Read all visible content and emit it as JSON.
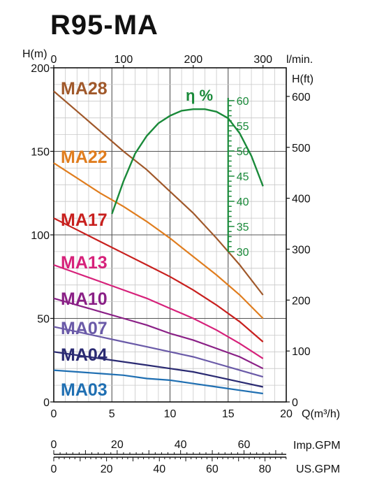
{
  "chart_data": {
    "type": "line",
    "title": "R95-MA",
    "x_axis": {
      "label": "Q(m³/h)",
      "lim": [
        0,
        20
      ],
      "ticks": [
        0,
        5,
        10,
        15,
        20
      ]
    },
    "x_top_axis": {
      "label": "l/min.",
      "ticks": [
        0,
        100,
        200,
        300
      ]
    },
    "y_axis": {
      "label": "H(m)",
      "lim": [
        0,
        200
      ],
      "ticks": [
        0,
        50,
        100,
        150,
        200
      ]
    },
    "y_right_axis": {
      "label": "H(ft)",
      "ticks": [
        0,
        100,
        200,
        300,
        400,
        500,
        600
      ]
    },
    "efficiency_axis": {
      "label": "η %",
      "ticks": [
        30,
        35,
        40,
        45,
        50,
        55,
        60
      ],
      "color": "#1a8a3a"
    },
    "imp_gpm_axis": {
      "label": "Imp.GPM",
      "ticks": [
        0,
        20,
        40,
        60
      ]
    },
    "us_gpm_axis": {
      "label": "US.GPM",
      "ticks": [
        0,
        20,
        40,
        60,
        80
      ]
    },
    "grid": true,
    "series": [
      {
        "name": "MA28",
        "color": "#a0582a",
        "x": [
          0,
          2,
          4,
          6,
          8,
          10,
          12,
          14,
          16,
          18
        ],
        "values": [
          186,
          174,
          162,
          150,
          139,
          126,
          113,
          98,
          82,
          64
        ]
      },
      {
        "name": "MA22",
        "color": "#e07d1e",
        "x": [
          0,
          2,
          4,
          6,
          8,
          10,
          12,
          14,
          16,
          18
        ],
        "values": [
          143,
          134,
          125,
          117,
          108,
          98,
          87,
          76,
          64,
          50
        ]
      },
      {
        "name": "MA17",
        "color": "#c8201e",
        "x": [
          0,
          2,
          4,
          6,
          8,
          10,
          12,
          14,
          16,
          18
        ],
        "values": [
          110,
          103,
          96,
          89,
          82,
          75,
          67,
          58,
          48,
          36
        ]
      },
      {
        "name": "MA13",
        "color": "#d6217a",
        "x": [
          0,
          2,
          4,
          6,
          8,
          10,
          12,
          14,
          16,
          18
        ],
        "values": [
          82,
          77,
          72,
          67,
          62,
          56,
          50,
          43,
          35,
          26
        ]
      },
      {
        "name": "MA10",
        "color": "#8a2086",
        "x": [
          0,
          2,
          4,
          6,
          8,
          10,
          12,
          14,
          16,
          18
        ],
        "values": [
          62,
          58,
          54,
          50,
          46,
          41,
          37,
          32,
          27,
          20
        ]
      },
      {
        "name": "MA07",
        "color": "#6a5aa8",
        "x": [
          0,
          2,
          4,
          6,
          8,
          10,
          12,
          14,
          16,
          18
        ],
        "values": [
          45,
          42,
          39,
          36,
          33,
          30,
          27,
          23,
          19,
          15
        ]
      },
      {
        "name": "MA04",
        "color": "#2a2a72",
        "x": [
          0,
          2,
          4,
          6,
          8,
          10,
          12,
          14,
          16,
          18
        ],
        "values": [
          30,
          28,
          26,
          24,
          22,
          20,
          18,
          15,
          12,
          9
        ]
      },
      {
        "name": "MA03",
        "color": "#1f6fb2",
        "x": [
          0,
          2,
          4,
          6,
          8,
          10,
          12,
          14,
          16,
          18
        ],
        "values": [
          19,
          18,
          17,
          16,
          14,
          13,
          11,
          9,
          7,
          5
        ]
      }
    ],
    "efficiency": {
      "name": "η %",
      "color": "#1a8a3a",
      "x": [
        5,
        6,
        7,
        8,
        9,
        10,
        11,
        12,
        13,
        14,
        15,
        16,
        17,
        18
      ],
      "values": [
        37.5,
        44,
        49.5,
        53,
        55.5,
        57,
        58,
        58.3,
        58.3,
        57.8,
        56.5,
        53.5,
        49,
        43
      ]
    }
  }
}
